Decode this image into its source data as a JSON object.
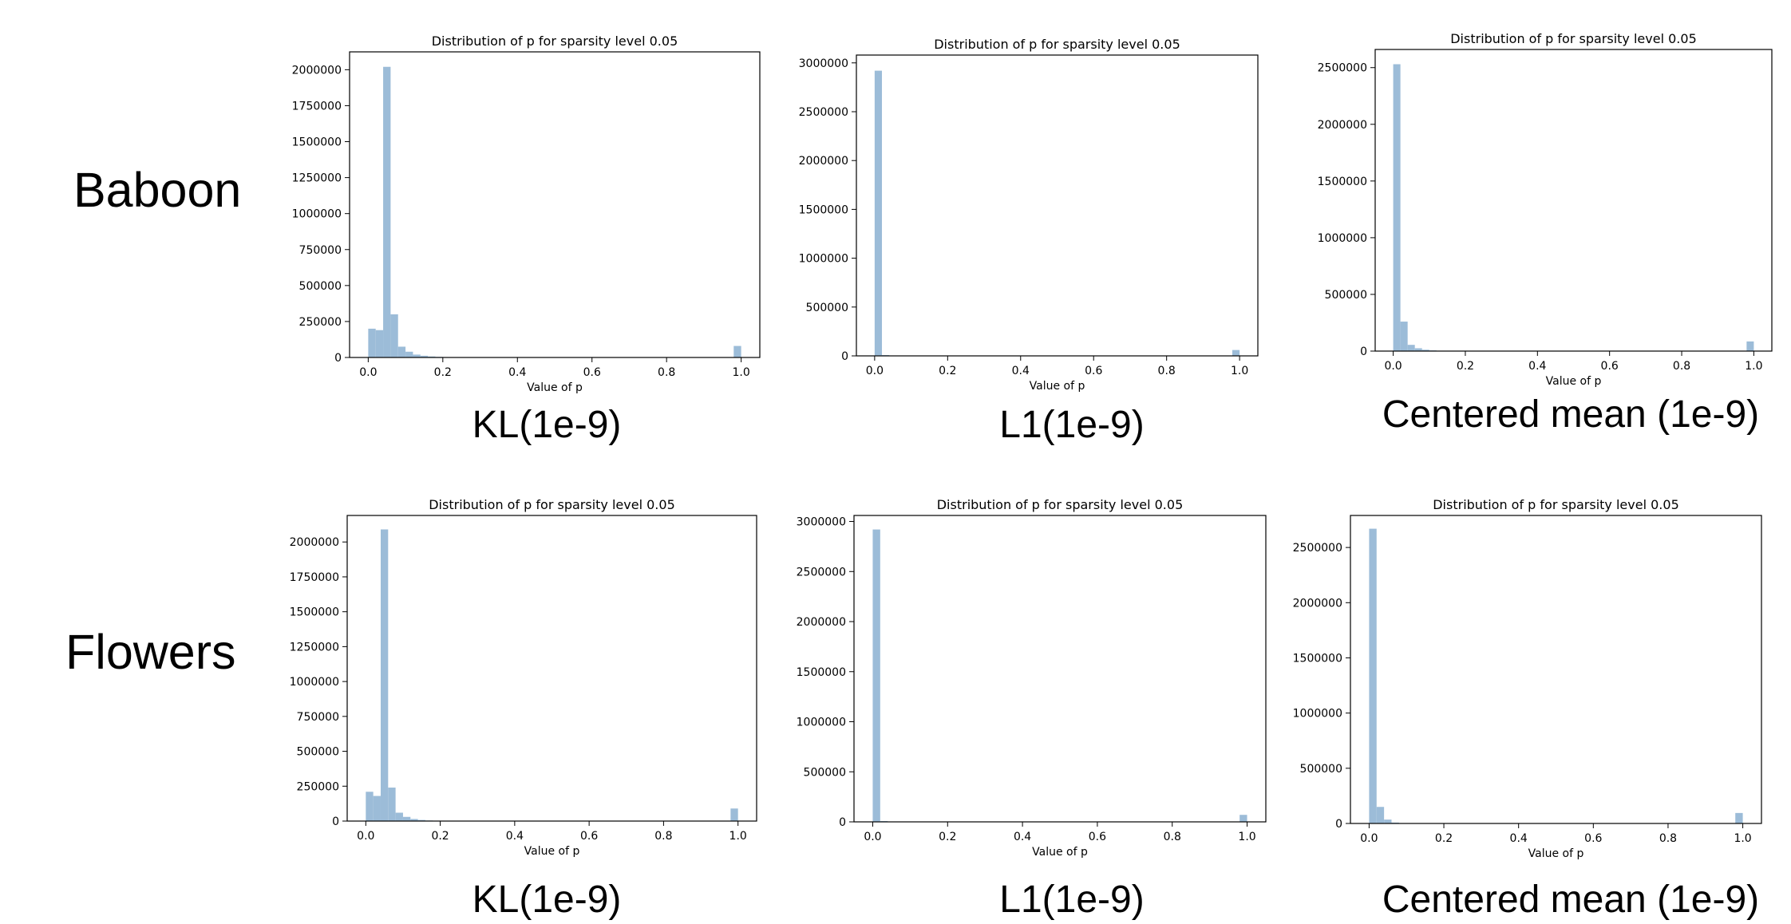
{
  "rows": [
    {
      "label": "Baboon"
    },
    {
      "label": "Flowers"
    }
  ],
  "captions": [
    "KL(1e-9)",
    "L1(1e-9)",
    "Centered mean (1e-9)",
    "KL(1e-9)",
    "L1(1e-9)",
    "Centered mean (1e-9)"
  ],
  "colors": {
    "bar": "#9cbcd8"
  },
  "chart_data": [
    {
      "type": "bar",
      "title": "Distribution of p for sparsity level 0.05",
      "xlabel": "Value of p",
      "ylabel": "",
      "bin_width": 0.02,
      "xlim": [
        -0.05,
        1.05
      ],
      "ylim": [
        0,
        2124000
      ],
      "xticks": [
        0.0,
        0.2,
        0.4,
        0.6,
        0.8,
        1.0
      ],
      "xtick_labels": [
        "0.0",
        "0.2",
        "0.4",
        "0.6",
        "0.8",
        "1.0"
      ],
      "yticks": [
        0,
        250000,
        500000,
        750000,
        1000000,
        1250000,
        1500000,
        1750000,
        2000000
      ],
      "ytick_labels": [
        "0",
        "250000",
        "500000",
        "750000",
        "1000000",
        "1250000",
        "1500000",
        "1750000",
        "2000000"
      ],
      "bin_starts": [
        0.0,
        0.02,
        0.04,
        0.06,
        0.08,
        0.1,
        0.12,
        0.14,
        0.16,
        0.18,
        0.2,
        0.98
      ],
      "values": [
        200000,
        190000,
        2020000,
        300000,
        75000,
        40000,
        20000,
        12000,
        7000,
        4000,
        2000,
        80000
      ]
    },
    {
      "type": "bar",
      "title": "Distribution of p for sparsity level 0.05",
      "xlabel": "Value of p",
      "ylabel": "",
      "bin_width": 0.02,
      "xlim": [
        -0.05,
        1.05
      ],
      "ylim": [
        0,
        3080000
      ],
      "xticks": [
        0.0,
        0.2,
        0.4,
        0.6,
        0.8,
        1.0
      ],
      "xtick_labels": [
        "0.0",
        "0.2",
        "0.4",
        "0.6",
        "0.8",
        "1.0"
      ],
      "yticks": [
        0,
        500000,
        1000000,
        1500000,
        2000000,
        2500000,
        3000000
      ],
      "ytick_labels": [
        "0",
        "500000",
        "1000000",
        "1500000",
        "2000000",
        "2500000",
        "3000000"
      ],
      "bin_starts": [
        0.0,
        0.02,
        0.04,
        0.98
      ],
      "values": [
        2920000,
        8000,
        3000,
        60000
      ]
    },
    {
      "type": "bar",
      "title": "Distribution of p for sparsity level 0.05",
      "xlabel": "Value of p",
      "ylabel": "",
      "bin_width": 0.02,
      "xlim": [
        -0.05,
        1.05
      ],
      "ylim": [
        0,
        2660000
      ],
      "xticks": [
        0.0,
        0.2,
        0.4,
        0.6,
        0.8,
        1.0
      ],
      "xtick_labels": [
        "0.0",
        "0.2",
        "0.4",
        "0.6",
        "0.8",
        "1.0"
      ],
      "yticks": [
        0,
        500000,
        1000000,
        1500000,
        2000000,
        2500000
      ],
      "ytick_labels": [
        "0",
        "500000",
        "1000000",
        "1500000",
        "2000000",
        "2500000"
      ],
      "bin_starts": [
        0.0,
        0.02,
        0.04,
        0.06,
        0.08,
        0.1,
        0.12,
        0.98
      ],
      "values": [
        2530000,
        260000,
        55000,
        25000,
        12000,
        6000,
        3000,
        85000
      ]
    },
    {
      "type": "bar",
      "title": "Distribution of p for sparsity level 0.05",
      "xlabel": "Value of p",
      "ylabel": "",
      "bin_width": 0.02,
      "xlim": [
        -0.05,
        1.05
      ],
      "ylim": [
        0,
        2190000
      ],
      "xticks": [
        0.0,
        0.2,
        0.4,
        0.6,
        0.8,
        1.0
      ],
      "xtick_labels": [
        "0.0",
        "0.2",
        "0.4",
        "0.6",
        "0.8",
        "1.0"
      ],
      "yticks": [
        0,
        250000,
        500000,
        750000,
        1000000,
        1250000,
        1500000,
        1750000,
        2000000
      ],
      "ytick_labels": [
        "0",
        "250000",
        "500000",
        "750000",
        "1000000",
        "1250000",
        "1500000",
        "1750000",
        "2000000"
      ],
      "bin_starts": [
        0.0,
        0.02,
        0.04,
        0.06,
        0.08,
        0.1,
        0.12,
        0.14,
        0.16,
        0.18,
        0.98
      ],
      "values": [
        210000,
        180000,
        2090000,
        240000,
        60000,
        30000,
        15000,
        8000,
        4000,
        2000,
        90000
      ]
    },
    {
      "type": "bar",
      "title": "Distribution of p for sparsity level 0.05",
      "xlabel": "Value of p",
      "ylabel": "",
      "bin_width": 0.02,
      "xlim": [
        -0.05,
        1.05
      ],
      "ylim": [
        0,
        3060000
      ],
      "xticks": [
        0.0,
        0.2,
        0.4,
        0.6,
        0.8,
        1.0
      ],
      "xtick_labels": [
        "0.0",
        "0.2",
        "0.4",
        "0.6",
        "0.8",
        "1.0"
      ],
      "yticks": [
        0,
        500000,
        1000000,
        1500000,
        2000000,
        2500000,
        3000000
      ],
      "ytick_labels": [
        "0",
        "500000",
        "1000000",
        "1500000",
        "2000000",
        "2500000",
        "3000000"
      ],
      "bin_starts": [
        0.0,
        0.02,
        0.04,
        0.98
      ],
      "values": [
        2920000,
        8000,
        3000,
        70000
      ]
    },
    {
      "type": "bar",
      "title": "Distribution of p for sparsity level 0.05",
      "xlabel": "Value of p",
      "ylabel": "",
      "bin_width": 0.02,
      "xlim": [
        -0.05,
        1.05
      ],
      "ylim": [
        0,
        2790000
      ],
      "xticks": [
        0.0,
        0.2,
        0.4,
        0.6,
        0.8,
        1.0
      ],
      "xtick_labels": [
        "0.0",
        "0.2",
        "0.4",
        "0.6",
        "0.8",
        "1.0"
      ],
      "yticks": [
        0,
        500000,
        1000000,
        1500000,
        2000000,
        2500000
      ],
      "ytick_labels": [
        "0",
        "500000",
        "1000000",
        "1500000",
        "2000000",
        "2500000"
      ],
      "bin_starts": [
        0.0,
        0.02,
        0.04,
        0.06,
        0.98
      ],
      "values": [
        2670000,
        150000,
        35000,
        8000,
        95000
      ]
    }
  ]
}
